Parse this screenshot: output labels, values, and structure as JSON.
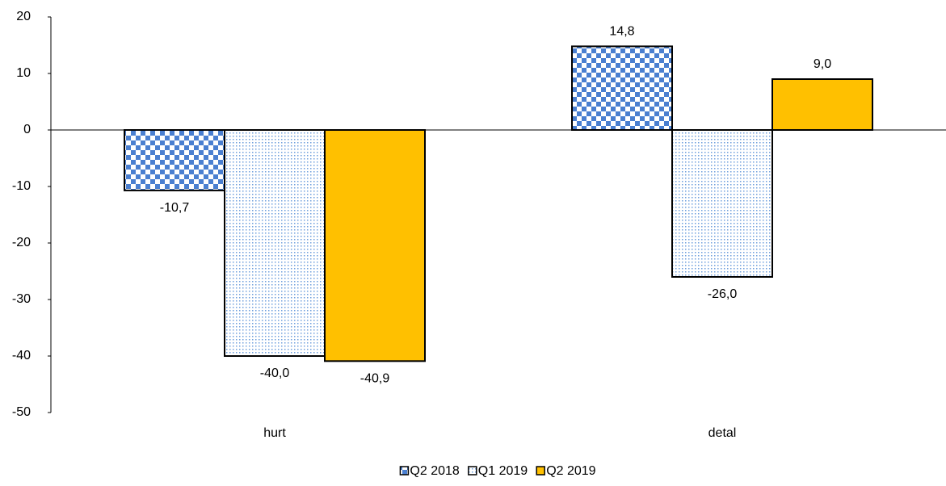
{
  "chart_data": {
    "type": "bar",
    "categories": [
      "hurt",
      "detal"
    ],
    "series": [
      {
        "name": "Q2 2018",
        "color": "#4a7fd0",
        "pattern": "checker",
        "values": [
          -10.7,
          14.8
        ],
        "value_labels": [
          "-10,7",
          "14,8"
        ]
      },
      {
        "name": "Q1 2019",
        "color": "#6f9fdc",
        "pattern": "dots",
        "values": [
          -40.0,
          -26.0
        ],
        "value_labels": [
          "-40,0",
          "-26,0"
        ]
      },
      {
        "name": "Q2 2019",
        "color": "#ffc000",
        "pattern": "solid",
        "values": [
          -40.9,
          9.0
        ],
        "value_labels": [
          "-40,9",
          "9,0"
        ]
      }
    ],
    "ylim": [
      -50,
      20
    ],
    "yticks": [
      -50,
      -40,
      -30,
      -20,
      -10,
      0,
      10,
      20
    ],
    "legend": "bottom"
  }
}
